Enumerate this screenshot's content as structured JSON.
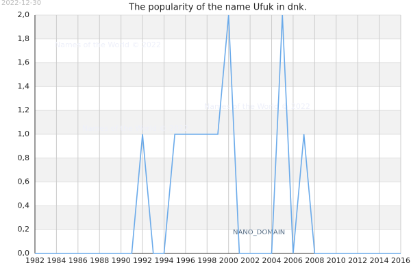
{
  "chart_data": {
    "type": "line",
    "title": "The popularity of the name Ufuk in dnk.",
    "stamp": "2022-12-30",
    "watermark": "Names of the World © 2022",
    "domain_label": "NANO_DOMAIN",
    "x": [
      1982,
      1983,
      1984,
      1985,
      1986,
      1987,
      1988,
      1989,
      1990,
      1991,
      1992,
      1993,
      1994,
      1995,
      1996,
      1997,
      1998,
      1999,
      2000,
      2001,
      2002,
      2003,
      2004,
      2005,
      2006,
      2007,
      2008,
      2009,
      2010,
      2011,
      2012,
      2013,
      2014,
      2015,
      2016
    ],
    "series": [
      {
        "color": "#6aaaea",
        "values": [
          0,
          0,
          0,
          0,
          0,
          0,
          0,
          0,
          0,
          0,
          1,
          0,
          0,
          1,
          1,
          1,
          1,
          1,
          2,
          0,
          0,
          0,
          0,
          2,
          0,
          1,
          0,
          0,
          0,
          0,
          0,
          0,
          0,
          0,
          0
        ]
      }
    ],
    "xlim": [
      1982,
      2016
    ],
    "xticks": [
      1982,
      1984,
      1986,
      1988,
      1990,
      1992,
      1994,
      1996,
      1998,
      2000,
      2002,
      2004,
      2006,
      2008,
      2010,
      2012,
      2014,
      2016
    ],
    "ylim": [
      0,
      2
    ],
    "yticks": [
      {
        "value": 0,
        "label": "0,0"
      },
      {
        "value": 0.2,
        "label": "0,2"
      },
      {
        "value": 0.4,
        "label": "0,4"
      },
      {
        "value": 0.6,
        "label": "0,6"
      },
      {
        "value": 0.8,
        "label": "0,8"
      },
      {
        "value": 1,
        "label": "1,0"
      },
      {
        "value": 1.2,
        "label": "1,2"
      },
      {
        "value": 1.4,
        "label": "1,4"
      },
      {
        "value": 1.6,
        "label": "1,6"
      },
      {
        "value": 1.8,
        "label": "1,8"
      },
      {
        "value": 2,
        "label": "2,0"
      }
    ],
    "grid": true
  }
}
